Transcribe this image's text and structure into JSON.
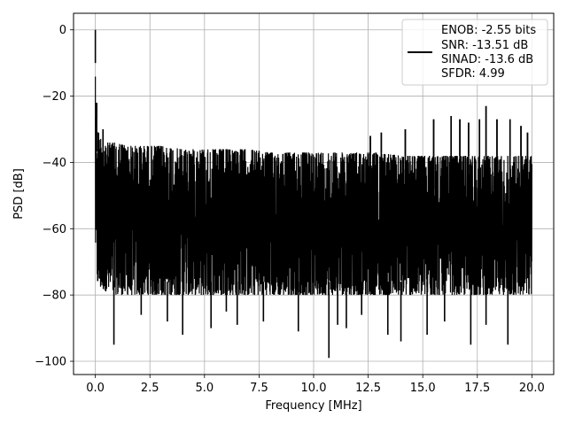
{
  "chart_data": {
    "type": "line",
    "title": "",
    "xlabel": "Frequency [MHz]",
    "ylabel": "PSD [dB]",
    "xlim": [
      -1,
      21
    ],
    "ylim": [
      -104,
      5
    ],
    "xticks": [
      0.0,
      2.5,
      5.0,
      7.5,
      10.0,
      12.5,
      15.0,
      17.5,
      20.0
    ],
    "xtick_labels": [
      "0.0",
      "2.5",
      "5.0",
      "7.5",
      "10.0",
      "12.5",
      "15.0",
      "17.5",
      "20.0"
    ],
    "yticks": [
      0,
      -20,
      -40,
      -60,
      -80,
      -100
    ],
    "ytick_labels": [
      "0",
      "−20",
      "−40",
      "−60",
      "−80",
      "−100"
    ],
    "grid": true,
    "legend_position": "top-right",
    "legend": {
      "lines": [
        "ENOB: -2.55 bits",
        "SNR: -13.51 dB",
        "SINAD: -13.6 dB",
        "SFDR: 4.99"
      ]
    },
    "series": [
      {
        "color": "#000000",
        "x": [
          0.0,
          0.02,
          0.05,
          0.08,
          0.12,
          0.2,
          0.3,
          0.5,
          1.0,
          1.5,
          2.0,
          2.5,
          3.0,
          4.0,
          5.0,
          6.0,
          7.0,
          8.0,
          9.0,
          10.0,
          11.0,
          12.0,
          13.0,
          14.0,
          15.0,
          16.0,
          17.0,
          18.0,
          19.0,
          20.0
        ],
        "upper_envelope": [
          0.0,
          -24,
          -26,
          -28,
          -30,
          -32,
          -33,
          -34,
          -34,
          -35,
          -35,
          -35,
          -35,
          -36,
          -36,
          -36,
          -36,
          -37,
          -37,
          -37,
          -37,
          -37,
          -37,
          -38,
          -38,
          -38,
          -38,
          -38,
          -38,
          -38
        ],
        "lower_envelope": [
          -65,
          -69,
          -72,
          -76,
          -77,
          -78,
          -78,
          -79,
          -80,
          -80,
          -80,
          -80,
          -80,
          -80,
          -80,
          -80,
          -80,
          -80,
          -80,
          -80,
          -80,
          -80,
          -80,
          -80,
          -80,
          -80,
          -80,
          -80,
          -80,
          -80
        ],
        "spikes_up": [
          {
            "x": 0.0,
            "y": 0.0
          },
          {
            "x": 0.06,
            "y": -22
          },
          {
            "x": 0.35,
            "y": -30
          },
          {
            "x": 15.5,
            "y": -27
          },
          {
            "x": 16.3,
            "y": -26
          },
          {
            "x": 16.7,
            "y": -27
          },
          {
            "x": 17.1,
            "y": -28
          },
          {
            "x": 17.6,
            "y": -27
          },
          {
            "x": 17.9,
            "y": -23
          },
          {
            "x": 18.4,
            "y": -27
          },
          {
            "x": 19.0,
            "y": -27
          },
          {
            "x": 19.5,
            "y": -29
          },
          {
            "x": 19.8,
            "y": -31
          },
          {
            "x": 14.2,
            "y": -30
          },
          {
            "x": 13.1,
            "y": -31
          },
          {
            "x": 12.6,
            "y": -32
          }
        ],
        "spikes_down": [
          {
            "x": 0.85,
            "y": -95
          },
          {
            "x": 4.0,
            "y": -92
          },
          {
            "x": 5.3,
            "y": -90
          },
          {
            "x": 6.5,
            "y": -89
          },
          {
            "x": 7.7,
            "y": -88
          },
          {
            "x": 9.3,
            "y": -91
          },
          {
            "x": 10.7,
            "y": -99
          },
          {
            "x": 11.1,
            "y": -89
          },
          {
            "x": 11.5,
            "y": -90
          },
          {
            "x": 13.4,
            "y": -92
          },
          {
            "x": 14.0,
            "y": -94
          },
          {
            "x": 15.2,
            "y": -92
          },
          {
            "x": 17.2,
            "y": -95
          },
          {
            "x": 17.9,
            "y": -89
          },
          {
            "x": 18.9,
            "y": -95
          },
          {
            "x": 3.3,
            "y": -88
          },
          {
            "x": 2.1,
            "y": -86
          },
          {
            "x": 6.0,
            "y": -85
          },
          {
            "x": 12.2,
            "y": -86
          },
          {
            "x": 16.0,
            "y": -88
          }
        ]
      }
    ]
  }
}
